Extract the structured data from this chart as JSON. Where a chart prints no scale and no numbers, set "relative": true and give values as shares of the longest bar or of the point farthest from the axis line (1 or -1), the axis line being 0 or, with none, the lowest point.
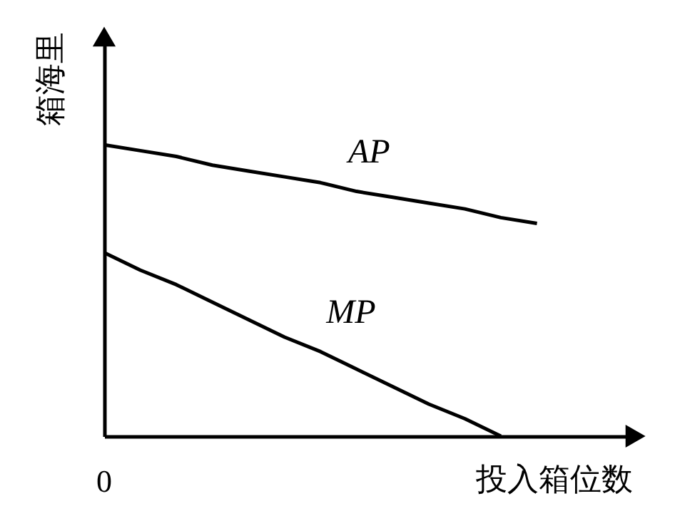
{
  "chart_data": {
    "type": "line",
    "relative": true,
    "xlabel": "投入箱位数",
    "ylabel": "箱海里",
    "annotations": [
      "0"
    ],
    "grid": false,
    "marker": "none",
    "line_style": "solid",
    "categories": [
      null,
      null,
      null,
      null,
      null,
      null,
      null,
      null,
      null,
      null,
      null,
      null,
      null
    ],
    "series": [
      {
        "name": "AP",
        "color": "#000000",
        "values": [
          1,
          0.98,
          0.96,
          0.93,
          0.91,
          0.89,
          0.87,
          0.84,
          0.82,
          0.8,
          0.78,
          0.75,
          0.73
        ]
      },
      {
        "name": "MP",
        "color": "#000000",
        "values": [
          0.63,
          0.57,
          0.52,
          0.46,
          0.4,
          0.34,
          0.29,
          0.23,
          0.17,
          0.11,
          0.06,
          0,
          null
        ]
      }
    ]
  }
}
